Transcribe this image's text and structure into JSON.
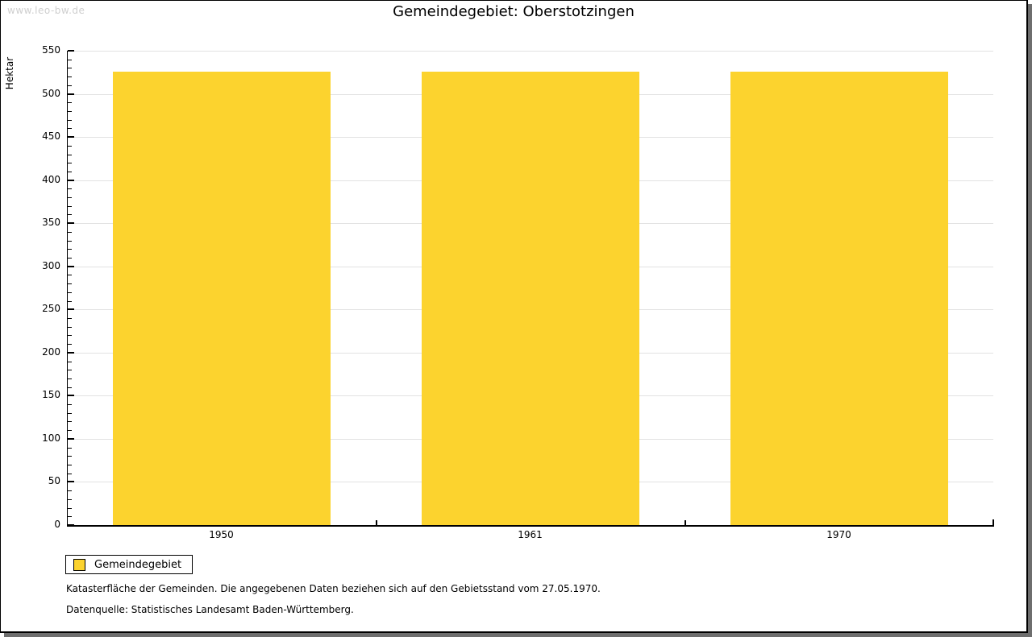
{
  "watermark": "www.leo-bw.de",
  "chart_data": {
    "type": "bar",
    "title": "Gemeindegebiet: Oberstotzingen",
    "xlabel": "",
    "ylabel": "Hektar",
    "categories": [
      "1950",
      "1961",
      "1970"
    ],
    "series": [
      {
        "name": "Gemeindegebiet",
        "color": "#FCD32E",
        "values": [
          526,
          526,
          526
        ]
      }
    ],
    "ylim": [
      0,
      550
    ],
    "yticks": [
      0,
      50,
      100,
      150,
      200,
      250,
      300,
      350,
      400,
      450,
      500,
      550
    ],
    "yminor_step": 10,
    "grid": "horizontal lines at major y ticks",
    "legend_position": "bottom-left"
  },
  "legend": {
    "label": "Gemeindegebiet",
    "swatch_color": "#FCD32E"
  },
  "footnotes": [
    "Katasterfläche der Gemeinden. Die angegebenen Daten beziehen sich auf den Gebietsstand vom 27.05.1970.",
    "Datenquelle: Statistisches Landesamt Baden-Württemberg."
  ],
  "colors": {
    "bar": "#FCD32E",
    "gridline": "#E2E2E2",
    "axis": "#000000",
    "watermark": "#CFCFCF",
    "window_shadow": "#6E6E6E"
  }
}
